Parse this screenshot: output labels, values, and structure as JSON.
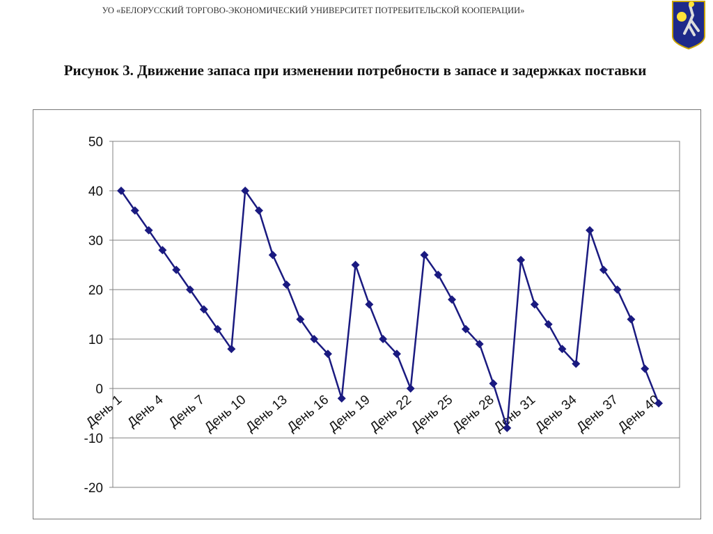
{
  "header": {
    "institution": "УО «БЕЛОРУССКИЙ ТОРГОВО-ЭКОНОМИЧЕСКИЙ УНИВЕРСИТЕТ ПОТРЕБИТЕЛЬСКОЙ КООПЕРАЦИИ»",
    "logo_icon": "university-coat-of-arms-icon"
  },
  "title": {
    "prefix": "Рисунок 3.",
    "text": "Движение запаса при изменении потребности в запасе и задержках поставки"
  },
  "chart_data": {
    "type": "line",
    "title": "",
    "xlabel": "",
    "ylabel": "",
    "ylim": [
      -20,
      50
    ],
    "yticks": [
      -20,
      -10,
      0,
      10,
      20,
      30,
      40,
      50
    ],
    "grid": "horizontal",
    "legend": "none",
    "series_color": "#1a1a80",
    "marker": "diamond",
    "x": [
      "День 1",
      "День 2",
      "День 3",
      "День 4",
      "День 5",
      "День 6",
      "День 7",
      "День 8",
      "День 9",
      "День 10",
      "День 11",
      "День 12",
      "День 13",
      "День 14",
      "День 15",
      "День 16",
      "День 17",
      "День 18",
      "День 19",
      "День 20",
      "День 21",
      "День 22",
      "День 23",
      "День 24",
      "День 25",
      "День 26",
      "День 27",
      "День 28",
      "День 29",
      "День 30",
      "День 31",
      "День 32",
      "День 33",
      "День 34",
      "День 35",
      "День 36",
      "День 37",
      "День 38",
      "День 39",
      "День 40"
    ],
    "xtick_labels": [
      "День 1",
      "День 4",
      "День 7",
      "День 10",
      "День 13",
      "День 16",
      "День 19",
      "День 22",
      "День 25",
      "День 28",
      "День 31",
      "День 34",
      "День 37",
      "День 40"
    ],
    "values": [
      40,
      36,
      32,
      28,
      24,
      20,
      16,
      12,
      8,
      40,
      36,
      27,
      21,
      14,
      10,
      7,
      -2,
      25,
      17,
      10,
      7,
      0,
      27,
      23,
      18,
      12,
      9,
      1,
      -8,
      26,
      17,
      13,
      8,
      5,
      32,
      24,
      20,
      14,
      4,
      -3
    ]
  }
}
